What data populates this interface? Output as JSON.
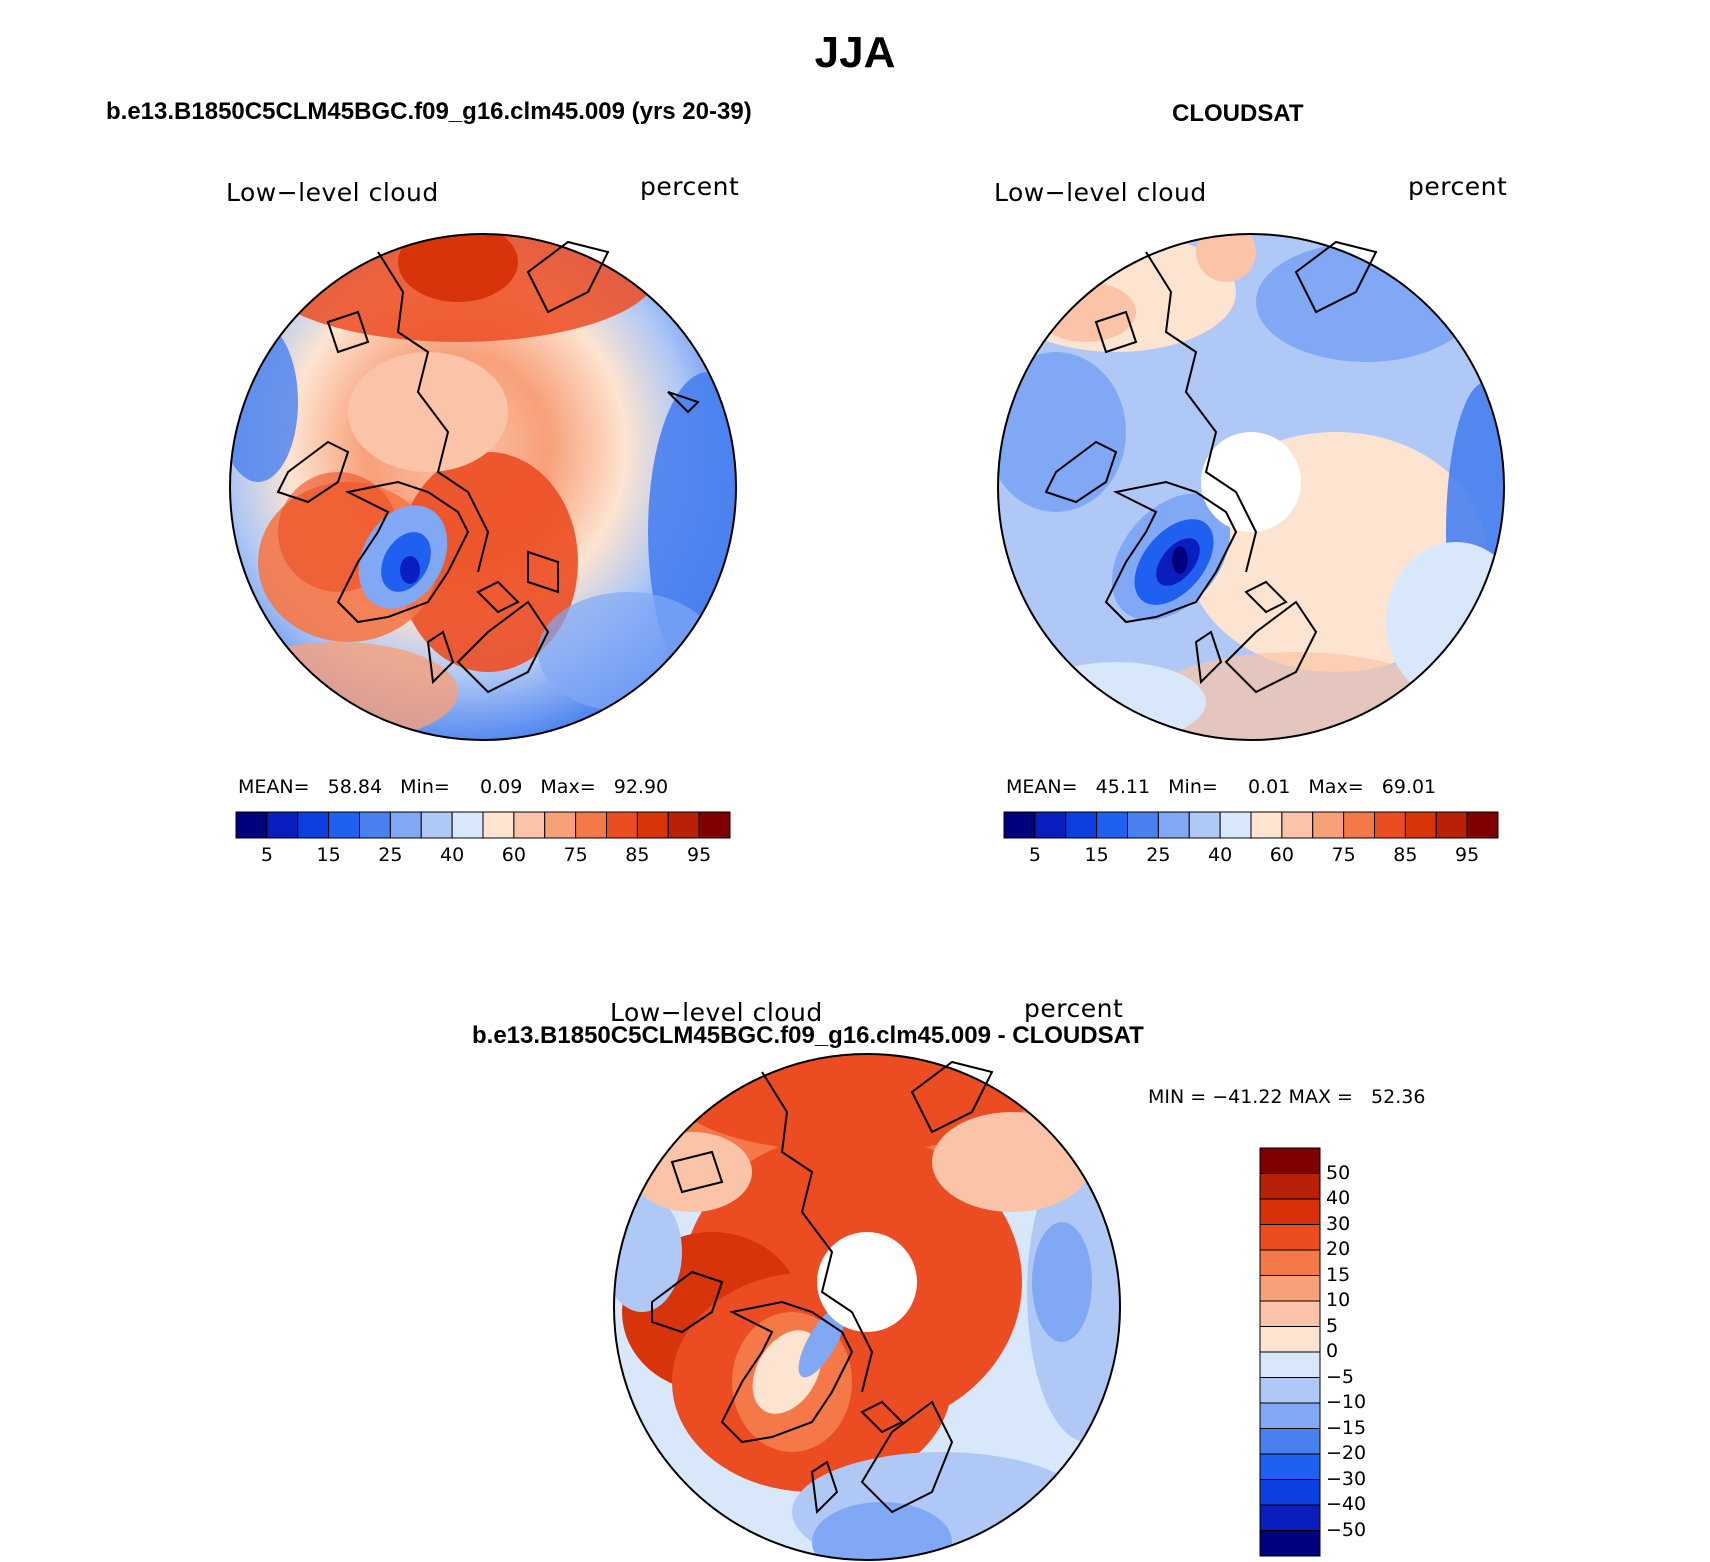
{
  "header": {
    "title": "JJA",
    "left_panel_title": "b.e13.B1850C5CLM45BGC.f09_g16.clm45.009 (yrs 20-39)",
    "right_panel_title": "CLOUDSAT",
    "diff_panel_title": "b.e13.B1850C5CLM45BGC.f09_g16.clm45.009 - CLOUDSAT"
  },
  "panels": {
    "model": {
      "variable": "Low−level cloud",
      "units": "percent",
      "stats": "MEAN=   58.84   Min=     0.09   Max=   92.90"
    },
    "obs": {
      "variable": "Low−level cloud",
      "units": "percent",
      "stats": "MEAN=   45.11   Min=     0.01   Max=   69.01"
    },
    "diff": {
      "variable": "Low−level cloud",
      "units": "percent",
      "stats": "MIN = −41.22 MAX =   52.36"
    }
  },
  "colorbar_abs": {
    "colors": [
      "#00007f",
      "#0a1ec0",
      "#0d3fe0",
      "#2060f0",
      "#4880f0",
      "#80a8f5",
      "#b0c8f5",
      "#d8e8fa",
      "#fde4d0",
      "#fbc4a8",
      "#f8a07a",
      "#f57848",
      "#ec4c22",
      "#d8340c",
      "#b82008",
      "#7f0000"
    ],
    "labels": [
      "5",
      "15",
      "25",
      "40",
      "60",
      "75",
      "85",
      "95"
    ]
  },
  "colorbar_diff": {
    "colors": [
      "#7f0000",
      "#b82008",
      "#d83008",
      "#ec4c22",
      "#f57848",
      "#f8a07a",
      "#fbc4a8",
      "#fde4d0",
      "#d8e8fa",
      "#b0c8f5",
      "#80a8f5",
      "#4880f0",
      "#2060f0",
      "#0d3fe0",
      "#0a1ec0",
      "#00007f"
    ],
    "labels": [
      "50",
      "40",
      "30",
      "20",
      "15",
      "10",
      "5",
      "0",
      "−5",
      "−10",
      "−15",
      "−20",
      "−30",
      "−40",
      "−50"
    ]
  },
  "colors": {
    "sea_high": "#f57848",
    "sea_low": "#80a8f5",
    "pole_mask": "#ffffff",
    "land_outline": "#000000"
  }
}
